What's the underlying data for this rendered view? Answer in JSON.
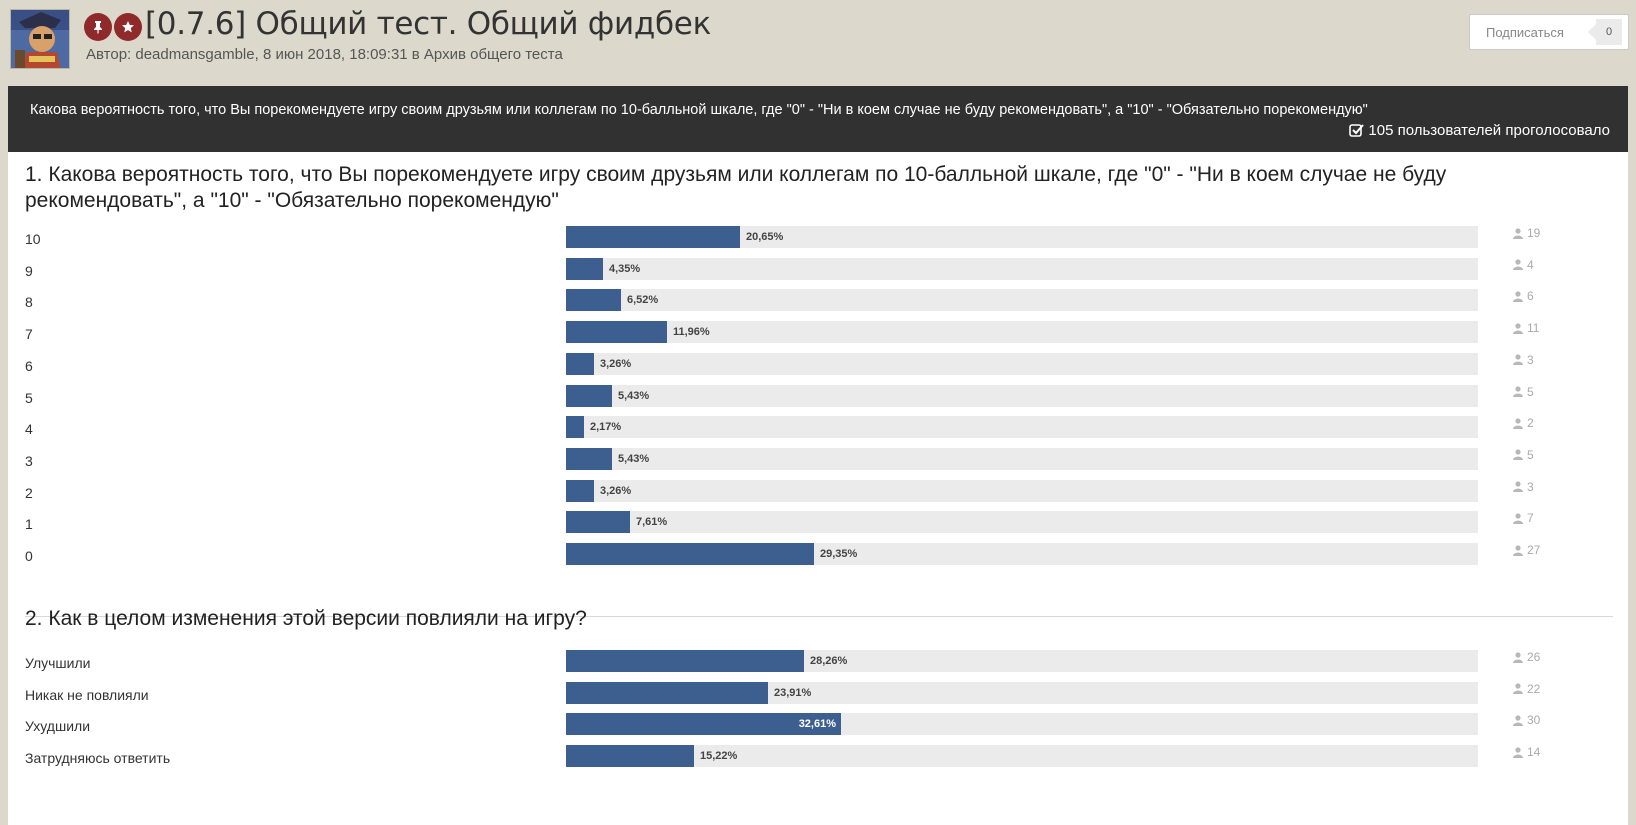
{
  "topic": {
    "title": "[0.7.6] Общий тест. Общий фидбек",
    "meta": "Автор: deadmansgamble, 8 июн 2018, 18:09:31 в Архив общего теста",
    "follow_label": "Подписаться",
    "follow_count": "0",
    "colors": {
      "background": "#dcd9cc",
      "badge": "#8e2a2a",
      "bar": "#3d5f8f",
      "track": "#ebebeb",
      "poll_header": "#313131"
    }
  },
  "poll": {
    "title": "Какова вероятность того, что Вы порекомендуете игру своим друзьям или коллегам по 10-балльной шкале, где \"0\" - \"Ни в коем случае не буду рекомендовать\", а \"10\" - \"Обязательно порекомендую\"",
    "voters": "105 пользователей проголосовало",
    "questions": [
      {
        "title": "1. Какова вероятность того, что Вы порекомендуете игру своим друзьям или коллегам по 10-балльной шкале, где \"0\" - \"Ни в коем случае не буду рекомендовать\", а \"10\" - \"Обязательно порекомендую\"",
        "choices": [
          {
            "label": "10",
            "percent": "20,65%",
            "value": 20.65,
            "votes": "19"
          },
          {
            "label": "9",
            "percent": "4,35%",
            "value": 4.35,
            "votes": "4"
          },
          {
            "label": "8",
            "percent": "6,52%",
            "value": 6.52,
            "votes": "6"
          },
          {
            "label": "7",
            "percent": "11,96%",
            "value": 11.96,
            "votes": "11"
          },
          {
            "label": "6",
            "percent": "3,26%",
            "value": 3.26,
            "votes": "3"
          },
          {
            "label": "5",
            "percent": "5,43%",
            "value": 5.43,
            "votes": "5"
          },
          {
            "label": "4",
            "percent": "2,17%",
            "value": 2.17,
            "votes": "2"
          },
          {
            "label": "3",
            "percent": "5,43%",
            "value": 5.43,
            "votes": "5"
          },
          {
            "label": "2",
            "percent": "3,26%",
            "value": 3.26,
            "votes": "3"
          },
          {
            "label": "1",
            "percent": "7,61%",
            "value": 7.61,
            "votes": "7"
          },
          {
            "label": "0",
            "percent": "29,35%",
            "value": 29.35,
            "votes": "27"
          }
        ]
      },
      {
        "title": "2. Как в целом изменения этой версии повлияли на игру?",
        "choices": [
          {
            "label": "Улучшили",
            "percent": "28,26%",
            "value": 28.26,
            "votes": "26"
          },
          {
            "label": "Никак не повлияли",
            "percent": "23,91%",
            "value": 23.91,
            "votes": "22"
          },
          {
            "label": "Ухудшили",
            "percent": "32,61%",
            "value": 32.61,
            "votes": "30",
            "winner": true
          },
          {
            "label": "Затрудняюсь ответить",
            "percent": "15,22%",
            "value": 15.22,
            "votes": "14"
          }
        ]
      }
    ]
  }
}
